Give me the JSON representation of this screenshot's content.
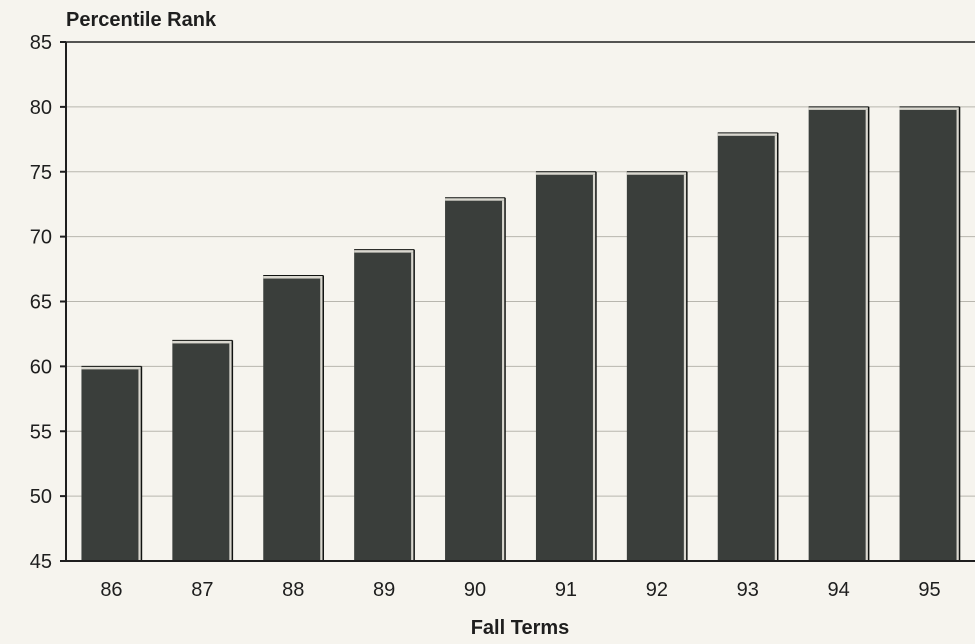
{
  "chart_data": {
    "type": "bar",
    "ylabel": "Percentile Rank",
    "xlabel": "Fall Terms",
    "categories": [
      "86",
      "87",
      "88",
      "89",
      "90",
      "91",
      "92",
      "93",
      "94",
      "95"
    ],
    "values": [
      60,
      62,
      67,
      69,
      73,
      75,
      75,
      78,
      80,
      80
    ],
    "ylim": [
      45,
      85
    ],
    "yticks": [
      "45",
      "50",
      "55",
      "60",
      "65",
      "70",
      "75",
      "80",
      "85"
    ],
    "grid": true,
    "legend": "none",
    "colors": {
      "bar": "#3a3e3b",
      "bar_highlight": "#d9d7cf",
      "bar_shadow": "#111311",
      "grid": "#b8b6ae",
      "axis": "#1e1e1e",
      "background": "#f6f4ee"
    }
  }
}
